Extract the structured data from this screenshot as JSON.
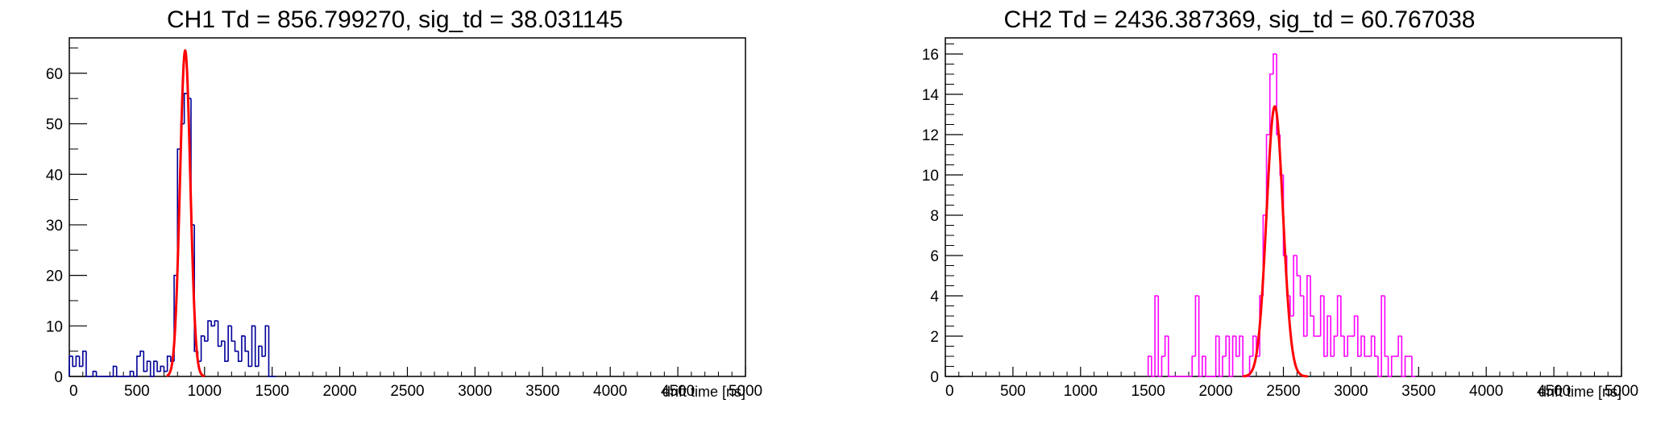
{
  "chart_data": [
    {
      "type": "line",
      "title": "CH1 Td = 856.799270, sig_td = 38.031145",
      "xlabel": "drift time [ns]",
      "ylabel": "",
      "xlim": [
        0,
        5000
      ],
      "ylim": [
        0,
        67
      ],
      "x_ticks": [
        "0",
        "500",
        "1000",
        "1500",
        "2000",
        "2500",
        "3000",
        "3500",
        "4000",
        "4500",
        "5000"
      ],
      "y_ticks": [
        "0",
        "10",
        "20",
        "30",
        "40",
        "50",
        "60"
      ],
      "grid": false,
      "legend": "none",
      "series": [
        {
          "style": "histogram",
          "color": "#000099",
          "bin_width": 25,
          "x": [
            0,
            25,
            50,
            75,
            100,
            125,
            150,
            175,
            200,
            225,
            250,
            275,
            300,
            325,
            350,
            375,
            400,
            425,
            450,
            475,
            500,
            525,
            550,
            575,
            600,
            625,
            650,
            675,
            700,
            725,
            750,
            775,
            800,
            825,
            850,
            875,
            900,
            925,
            950,
            975,
            1000,
            1025,
            1050,
            1075,
            1100,
            1125,
            1150,
            1175,
            1200,
            1225,
            1250,
            1275,
            1300,
            1325,
            1350,
            1375,
            1400,
            1425,
            1450,
            1475,
            1500
          ],
          "y": [
            4,
            2,
            4,
            2,
            5,
            0,
            0,
            1,
            0,
            0,
            0,
            0,
            0,
            2,
            0,
            0,
            0,
            0,
            1,
            0,
            4,
            5,
            1,
            3,
            0,
            3,
            1,
            2,
            1,
            4,
            3,
            20,
            45,
            50,
            56,
            55,
            30,
            5,
            3,
            8,
            7,
            11,
            10,
            11,
            6,
            7,
            3,
            10,
            7,
            5,
            3,
            8,
            5,
            2,
            10,
            2,
            6,
            4,
            10,
            0,
            0
          ]
        },
        {
          "style": "gaussian fit",
          "color": "#ff0000",
          "amplitude": 64.5,
          "mean": 856.79927,
          "sigma": 38.031145,
          "x_range": [
            720,
            1000
          ]
        }
      ]
    },
    {
      "type": "line",
      "title": "CH2 Td = 2436.387369, sig_td = 60.767038",
      "xlabel": "drift time [ns]",
      "ylabel": "",
      "xlim": [
        0,
        5000
      ],
      "ylim": [
        0,
        16.8
      ],
      "x_ticks": [
        "0",
        "500",
        "1000",
        "1500",
        "2000",
        "2500",
        "3000",
        "3500",
        "4000",
        "4500",
        "5000"
      ],
      "y_ticks": [
        "0",
        "2",
        "4",
        "6",
        "8",
        "10",
        "12",
        "14",
        "16"
      ],
      "grid": false,
      "legend": "none",
      "series": [
        {
          "style": "histogram",
          "color": "#ff00ff",
          "bin_width": 25,
          "x": [
            1500,
            1525,
            1550,
            1575,
            1600,
            1625,
            1650,
            1675,
            1700,
            1725,
            1750,
            1775,
            1800,
            1825,
            1850,
            1875,
            1900,
            1925,
            1950,
            1975,
            2000,
            2025,
            2050,
            2075,
            2100,
            2125,
            2150,
            2175,
            2200,
            2225,
            2250,
            2275,
            2300,
            2325,
            2350,
            2375,
            2400,
            2425,
            2450,
            2475,
            2500,
            2525,
            2550,
            2575,
            2600,
            2625,
            2650,
            2675,
            2700,
            2725,
            2750,
            2775,
            2800,
            2825,
            2850,
            2875,
            2900,
            2925,
            2950,
            2975,
            3000,
            3025,
            3050,
            3075,
            3100,
            3125,
            3150,
            3175,
            3200,
            3225,
            3250,
            3275,
            3300,
            3325,
            3350,
            3375,
            3400,
            3425,
            3450
          ],
          "y": [
            1,
            0,
            4,
            0,
            1,
            2,
            0,
            0,
            0,
            0,
            0,
            0,
            0,
            1,
            4,
            0,
            1,
            0,
            0,
            0,
            2,
            0,
            1,
            2,
            0,
            2,
            1,
            2,
            0,
            0,
            1,
            2,
            1,
            4,
            8,
            12,
            15,
            16,
            12,
            10,
            6,
            4,
            3,
            6,
            5,
            4,
            2,
            5,
            3,
            2,
            2,
            4,
            1,
            3,
            1,
            2,
            4,
            2,
            1,
            2,
            2,
            3,
            1,
            2,
            1,
            1,
            2,
            1,
            0,
            4,
            1,
            0,
            1,
            1,
            2,
            0,
            1,
            1,
            0
          ]
        },
        {
          "style": "gaussian fit",
          "color": "#ff0000",
          "amplitude": 13.4,
          "mean": 2436.387369,
          "sigma": 60.767038,
          "x_range": [
            2200,
            2680
          ]
        }
      ]
    }
  ]
}
